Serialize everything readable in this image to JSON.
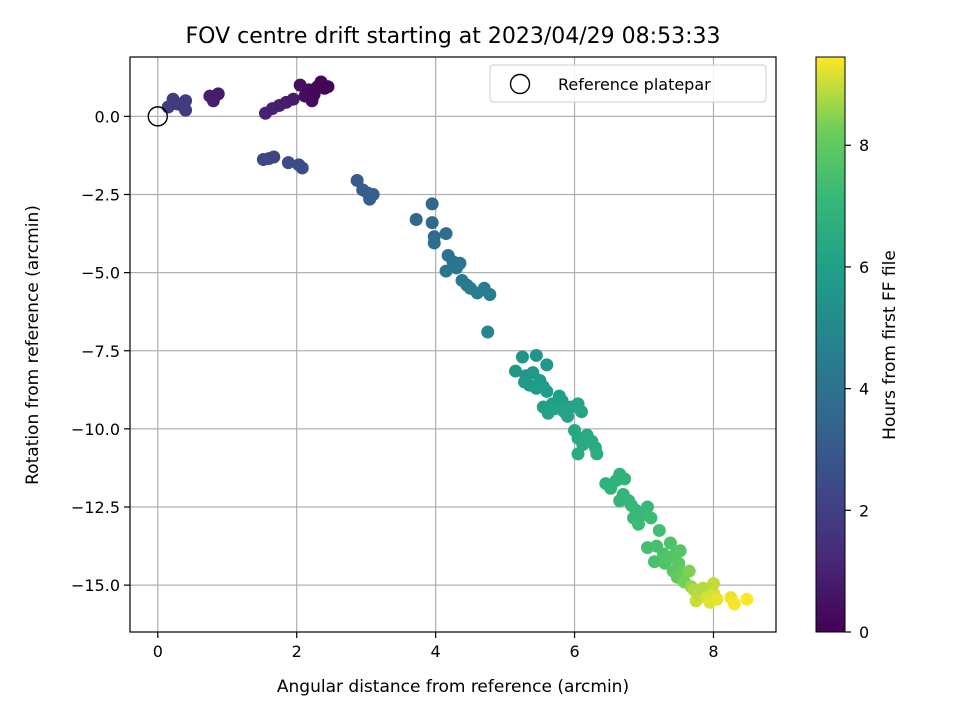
{
  "chart_data": {
    "type": "scatter",
    "title": "FOV centre drift starting at 2023/04/29 08:53:33",
    "xlabel": "Angular distance from reference (arcmin)",
    "ylabel": "Rotation from reference (arcmin)",
    "colorbar_label": "Hours from first FF file",
    "xlim": [
      -0.4,
      8.9
    ],
    "ylim": [
      -16.5,
      1.9
    ],
    "clim": [
      0,
      9.45
    ],
    "colormap": "viridis",
    "grid": true,
    "legend_position": "upper-right",
    "x_ticks": [
      0,
      2,
      4,
      6,
      8
    ],
    "x_tick_labels": [
      "0",
      "2",
      "4",
      "6",
      "8"
    ],
    "y_ticks": [
      0,
      -2.5,
      -5,
      -7.5,
      -10,
      -12.5,
      -15
    ],
    "y_tick_labels": [
      "0.0",
      "−2.5",
      "−5.0",
      "−7.5",
      "−10.0",
      "−12.5",
      "−15.0"
    ],
    "colorbar_ticks": [
      0,
      2,
      4,
      6,
      8
    ],
    "colorbar_tick_labels": [
      "0",
      "2",
      "4",
      "6",
      "8"
    ],
    "reference": {
      "name": "Reference platepar",
      "x": 0,
      "y": 0
    },
    "points": [
      {
        "x": 0.15,
        "y": 0.3,
        "h": 1.9
      },
      {
        "x": 0.22,
        "y": 0.55,
        "h": 1.85
      },
      {
        "x": 0.28,
        "y": 0.4,
        "h": 1.8
      },
      {
        "x": 0.35,
        "y": 0.35,
        "h": 1.9
      },
      {
        "x": 0.4,
        "y": 0.2,
        "h": 1.95
      },
      {
        "x": 0.4,
        "y": 0.5,
        "h": 1.85
      },
      {
        "x": 0.75,
        "y": 0.65,
        "h": 0.9
      },
      {
        "x": 0.8,
        "y": 0.5,
        "h": 0.85
      },
      {
        "x": 0.87,
        "y": 0.72,
        "h": 0.8
      },
      {
        "x": 1.55,
        "y": 0.1,
        "h": 1.0
      },
      {
        "x": 1.65,
        "y": 0.25,
        "h": 0.95
      },
      {
        "x": 1.75,
        "y": 0.35,
        "h": 0.9
      },
      {
        "x": 1.85,
        "y": 0.45,
        "h": 0.85
      },
      {
        "x": 1.95,
        "y": 0.55,
        "h": 0.8
      },
      {
        "x": 2.05,
        "y": 1.0,
        "h": 0.4
      },
      {
        "x": 2.12,
        "y": 0.65,
        "h": 0.35
      },
      {
        "x": 2.18,
        "y": 0.85,
        "h": 0.3
      },
      {
        "x": 2.22,
        "y": 0.5,
        "h": 0.3
      },
      {
        "x": 2.25,
        "y": 0.7,
        "h": 0.25
      },
      {
        "x": 2.3,
        "y": 0.95,
        "h": 0.2
      },
      {
        "x": 2.35,
        "y": 1.1,
        "h": 0.15
      },
      {
        "x": 2.4,
        "y": 0.9,
        "h": 0.1
      },
      {
        "x": 2.45,
        "y": 0.95,
        "h": 0.05
      },
      {
        "x": 1.52,
        "y": -1.38,
        "h": 2.3
      },
      {
        "x": 1.6,
        "y": -1.35,
        "h": 2.3
      },
      {
        "x": 1.67,
        "y": -1.3,
        "h": 2.25
      },
      {
        "x": 1.88,
        "y": -1.48,
        "h": 2.4
      },
      {
        "x": 2.03,
        "y": -1.55,
        "h": 2.45
      },
      {
        "x": 2.08,
        "y": -1.65,
        "h": 2.5
      },
      {
        "x": 2.87,
        "y": -2.05,
        "h": 3.1
      },
      {
        "x": 2.95,
        "y": -2.35,
        "h": 3.15
      },
      {
        "x": 3.02,
        "y": -2.45,
        "h": 3.2
      },
      {
        "x": 3.05,
        "y": -2.65,
        "h": 3.25
      },
      {
        "x": 3.1,
        "y": -2.5,
        "h": 3.2
      },
      {
        "x": 3.72,
        "y": -3.3,
        "h": 3.6
      },
      {
        "x": 3.95,
        "y": -2.8,
        "h": 3.55
      },
      {
        "x": 3.95,
        "y": -3.4,
        "h": 3.65
      },
      {
        "x": 3.98,
        "y": -3.85,
        "h": 3.7
      },
      {
        "x": 3.98,
        "y": -4.05,
        "h": 3.75
      },
      {
        "x": 4.15,
        "y": -3.75,
        "h": 3.8
      },
      {
        "x": 4.15,
        "y": -4.95,
        "h": 4.2
      },
      {
        "x": 4.18,
        "y": -4.45,
        "h": 4.0
      },
      {
        "x": 4.25,
        "y": -4.65,
        "h": 4.1
      },
      {
        "x": 4.3,
        "y": -4.85,
        "h": 4.2
      },
      {
        "x": 4.35,
        "y": -4.7,
        "h": 4.15
      },
      {
        "x": 4.38,
        "y": -5.25,
        "h": 4.3
      },
      {
        "x": 4.45,
        "y": -5.4,
        "h": 4.35
      },
      {
        "x": 4.5,
        "y": -5.5,
        "h": 4.45
      },
      {
        "x": 4.6,
        "y": -5.65,
        "h": 4.5
      },
      {
        "x": 4.7,
        "y": -5.5,
        "h": 4.55
      },
      {
        "x": 4.78,
        "y": -5.7,
        "h": 4.6
      },
      {
        "x": 4.75,
        "y": -6.9,
        "h": 4.9
      },
      {
        "x": 5.15,
        "y": -8.15,
        "h": 5.6
      },
      {
        "x": 5.25,
        "y": -7.7,
        "h": 5.45
      },
      {
        "x": 5.3,
        "y": -8.3,
        "h": 5.6
      },
      {
        "x": 5.28,
        "y": -8.5,
        "h": 5.7
      },
      {
        "x": 5.35,
        "y": -8.6,
        "h": 5.75
      },
      {
        "x": 5.4,
        "y": -8.2,
        "h": 5.65
      },
      {
        "x": 5.45,
        "y": -7.65,
        "h": 5.5
      },
      {
        "x": 5.45,
        "y": -8.7,
        "h": 5.8
      },
      {
        "x": 5.5,
        "y": -8.45,
        "h": 5.75
      },
      {
        "x": 5.55,
        "y": -8.65,
        "h": 5.85
      },
      {
        "x": 5.6,
        "y": -7.95,
        "h": 5.6
      },
      {
        "x": 5.6,
        "y": -8.8,
        "h": 5.9
      },
      {
        "x": 5.55,
        "y": -9.3,
        "h": 6.0
      },
      {
        "x": 5.62,
        "y": -9.5,
        "h": 6.1
      },
      {
        "x": 5.68,
        "y": -9.2,
        "h": 6.0
      },
      {
        "x": 5.72,
        "y": -9.35,
        "h": 6.1
      },
      {
        "x": 5.78,
        "y": -8.95,
        "h": 5.95
      },
      {
        "x": 5.82,
        "y": -9.1,
        "h": 6.0
      },
      {
        "x": 5.85,
        "y": -9.45,
        "h": 6.15
      },
      {
        "x": 5.9,
        "y": -9.6,
        "h": 6.2
      },
      {
        "x": 5.95,
        "y": -9.3,
        "h": 6.15
      },
      {
        "x": 6.0,
        "y": -10.05,
        "h": 6.3
      },
      {
        "x": 6.05,
        "y": -10.3,
        "h": 6.35
      },
      {
        "x": 6.05,
        "y": -9.2,
        "h": 6.25
      },
      {
        "x": 6.1,
        "y": -9.45,
        "h": 6.3
      },
      {
        "x": 6.05,
        "y": -10.8,
        "h": 6.5
      },
      {
        "x": 6.12,
        "y": -10.5,
        "h": 6.45
      },
      {
        "x": 6.18,
        "y": -10.2,
        "h": 6.45
      },
      {
        "x": 6.25,
        "y": -10.4,
        "h": 6.5
      },
      {
        "x": 6.3,
        "y": -10.6,
        "h": 6.55
      },
      {
        "x": 6.32,
        "y": -10.8,
        "h": 6.6
      },
      {
        "x": 6.45,
        "y": -11.75,
        "h": 6.85
      },
      {
        "x": 6.52,
        "y": -11.9,
        "h": 6.9
      },
      {
        "x": 6.6,
        "y": -11.65,
        "h": 6.85
      },
      {
        "x": 6.65,
        "y": -11.45,
        "h": 6.8
      },
      {
        "x": 6.65,
        "y": -12.3,
        "h": 7.0
      },
      {
        "x": 6.7,
        "y": -12.1,
        "h": 6.95
      },
      {
        "x": 6.72,
        "y": -11.6,
        "h": 6.9
      },
      {
        "x": 6.78,
        "y": -12.3,
        "h": 7.05
      },
      {
        "x": 6.82,
        "y": -12.45,
        "h": 7.1
      },
      {
        "x": 6.85,
        "y": -12.85,
        "h": 7.2
      },
      {
        "x": 6.88,
        "y": -12.6,
        "h": 7.15
      },
      {
        "x": 6.92,
        "y": -13.05,
        "h": 7.25
      },
      {
        "x": 6.98,
        "y": -12.75,
        "h": 7.2
      },
      {
        "x": 7.05,
        "y": -12.5,
        "h": 7.2
      },
      {
        "x": 7.1,
        "y": -12.85,
        "h": 7.25
      },
      {
        "x": 7.05,
        "y": -13.8,
        "h": 7.45
      },
      {
        "x": 7.15,
        "y": -14.25,
        "h": 7.55
      },
      {
        "x": 7.18,
        "y": -13.75,
        "h": 7.5
      },
      {
        "x": 7.22,
        "y": -13.25,
        "h": 7.4
      },
      {
        "x": 7.28,
        "y": -14.0,
        "h": 7.6
      },
      {
        "x": 7.3,
        "y": -14.3,
        "h": 7.65
      },
      {
        "x": 7.35,
        "y": -14.15,
        "h": 7.7
      },
      {
        "x": 7.38,
        "y": -13.65,
        "h": 7.6
      },
      {
        "x": 7.42,
        "y": -14.55,
        "h": 7.85
      },
      {
        "x": 7.45,
        "y": -14.0,
        "h": 7.75
      },
      {
        "x": 7.48,
        "y": -14.75,
        "h": 8.0
      },
      {
        "x": 7.5,
        "y": -14.3,
        "h": 7.9
      },
      {
        "x": 7.55,
        "y": -14.6,
        "h": 8.1
      },
      {
        "x": 7.58,
        "y": -14.9,
        "h": 8.3
      },
      {
        "x": 7.52,
        "y": -13.9,
        "h": 7.8
      },
      {
        "x": 7.65,
        "y": -14.55,
        "h": 8.4
      },
      {
        "x": 7.68,
        "y": -15.05,
        "h": 8.6
      },
      {
        "x": 7.72,
        "y": -15.15,
        "h": 8.8
      },
      {
        "x": 7.75,
        "y": -15.5,
        "h": 9.0
      },
      {
        "x": 7.8,
        "y": -15.3,
        "h": 8.9
      },
      {
        "x": 7.85,
        "y": -15.1,
        "h": 8.85
      },
      {
        "x": 7.9,
        "y": -15.4,
        "h": 9.1
      },
      {
        "x": 7.95,
        "y": -15.55,
        "h": 9.2
      },
      {
        "x": 8.0,
        "y": -15.25,
        "h": 9.1
      },
      {
        "x": 8.05,
        "y": -15.45,
        "h": 9.25
      },
      {
        "x": 8.0,
        "y": -14.95,
        "h": 8.95
      },
      {
        "x": 8.25,
        "y": -15.4,
        "h": 9.3
      },
      {
        "x": 8.3,
        "y": -15.6,
        "h": 9.4
      },
      {
        "x": 8.48,
        "y": -15.45,
        "h": 9.45
      }
    ]
  }
}
